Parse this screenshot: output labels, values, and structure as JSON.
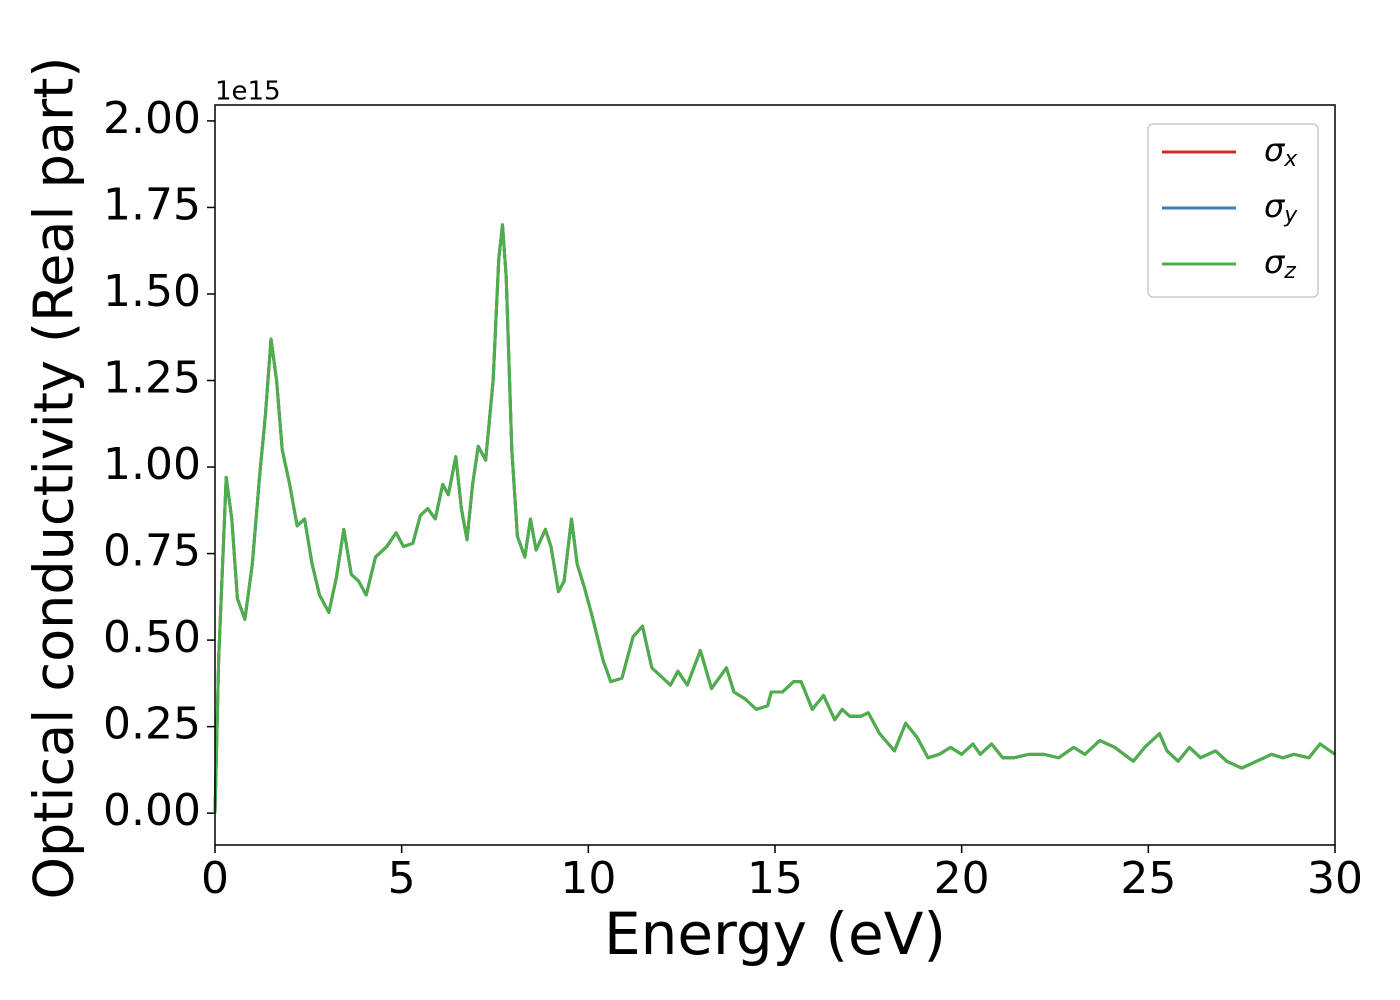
{
  "chart_data": {
    "type": "line",
    "x_label": "Energy (eV)",
    "y_label": "Optical conductivity (Real part)",
    "y_offset_label": "1e15",
    "xlim": [
      0,
      30
    ],
    "ylim": [
      -0.092,
      2.046
    ],
    "xticks": [
      0,
      5,
      10,
      15,
      20,
      25,
      30
    ],
    "yticks": [
      {
        "value": 0,
        "label": "0.00"
      },
      {
        "value": 0.25,
        "label": "0.25"
      },
      {
        "value": 0.5,
        "label": "0.50"
      },
      {
        "value": 0.75,
        "label": "0.75"
      },
      {
        "value": 1,
        "label": "1.00"
      },
      {
        "value": 1.25,
        "label": "1.25"
      },
      {
        "value": 1.5,
        "label": "1.50"
      },
      {
        "value": 1.75,
        "label": "1.75"
      },
      {
        "value": 2,
        "label": "2.00"
      }
    ],
    "legend": "upper right",
    "x": [
      0,
      0.1,
      0.3,
      0.45,
      0.6,
      0.8,
      1.0,
      1.2,
      1.35,
      1.5,
      1.65,
      1.8,
      2.0,
      2.2,
      2.4,
      2.6,
      2.8,
      3.05,
      3.25,
      3.45,
      3.65,
      3.85,
      4.05,
      4.3,
      4.6,
      4.85,
      5.05,
      5.3,
      5.5,
      5.7,
      5.9,
      6.1,
      6.25,
      6.45,
      6.6,
      6.75,
      6.9,
      7.05,
      7.25,
      7.45,
      7.6,
      7.7,
      7.8,
      7.95,
      8.1,
      8.3,
      8.45,
      8.6,
      8.85,
      9.0,
      9.2,
      9.35,
      9.55,
      9.7,
      9.9,
      10.1,
      10.4,
      10.6,
      10.9,
      11.2,
      11.45,
      11.7,
      12.0,
      12.2,
      12.4,
      12.65,
      13.0,
      13.3,
      13.7,
      13.9,
      14.2,
      14.5,
      14.8,
      14.9,
      15.2,
      15.5,
      15.7,
      16.0,
      16.3,
      16.6,
      16.8,
      17.0,
      17.3,
      17.5,
      17.8,
      18.2,
      18.5,
      18.8,
      19.1,
      19.4,
      19.7,
      20.0,
      20.3,
      20.5,
      20.8,
      21.1,
      21.4,
      21.8,
      22.2,
      22.6,
      23.0,
      23.3,
      23.7,
      24.1,
      24.6,
      24.9,
      25.3,
      25.5,
      25.8,
      26.1,
      26.4,
      26.8,
      27.1,
      27.5,
      27.9,
      28.3,
      28.6,
      28.9,
      29.3,
      29.6,
      30.0
    ],
    "series": [
      {
        "name": "σx",
        "color": "#d62728",
        "values": [
          0,
          0.45,
          0.97,
          0.85,
          0.62,
          0.56,
          0.72,
          0.98,
          1.15,
          1.37,
          1.25,
          1.05,
          0.95,
          0.83,
          0.85,
          0.72,
          0.63,
          0.58,
          0.68,
          0.82,
          0.69,
          0.67,
          0.63,
          0.74,
          0.77,
          0.81,
          0.77,
          0.78,
          0.86,
          0.88,
          0.85,
          0.95,
          0.92,
          1.03,
          0.88,
          0.79,
          0.95,
          1.06,
          1.02,
          1.25,
          1.6,
          1.7,
          1.55,
          1.05,
          0.8,
          0.74,
          0.85,
          0.76,
          0.82,
          0.77,
          0.64,
          0.67,
          0.85,
          0.72,
          0.65,
          0.57,
          0.44,
          0.38,
          0.39,
          0.51,
          0.54,
          0.42,
          0.39,
          0.37,
          0.41,
          0.37,
          0.47,
          0.36,
          0.42,
          0.35,
          0.33,
          0.3,
          0.31,
          0.35,
          0.35,
          0.38,
          0.38,
          0.3,
          0.34,
          0.27,
          0.3,
          0.28,
          0.28,
          0.29,
          0.23,
          0.18,
          0.26,
          0.22,
          0.16,
          0.17,
          0.19,
          0.17,
          0.2,
          0.17,
          0.2,
          0.16,
          0.16,
          0.17,
          0.17,
          0.16,
          0.19,
          0.17,
          0.21,
          0.19,
          0.15,
          0.19,
          0.23,
          0.18,
          0.15,
          0.19,
          0.16,
          0.18,
          0.15,
          0.13,
          0.15,
          0.17,
          0.16,
          0.17,
          0.16,
          0.2,
          0.17
        ]
      },
      {
        "name": "σy",
        "color": "#3a7fb8",
        "values": [
          0,
          0.45,
          0.97,
          0.85,
          0.62,
          0.56,
          0.72,
          0.98,
          1.15,
          1.37,
          1.25,
          1.05,
          0.95,
          0.83,
          0.85,
          0.72,
          0.63,
          0.58,
          0.68,
          0.82,
          0.69,
          0.67,
          0.63,
          0.74,
          0.77,
          0.81,
          0.77,
          0.78,
          0.86,
          0.88,
          0.85,
          0.95,
          0.92,
          1.03,
          0.88,
          0.79,
          0.95,
          1.06,
          1.02,
          1.25,
          1.6,
          1.7,
          1.55,
          1.05,
          0.8,
          0.74,
          0.85,
          0.76,
          0.82,
          0.77,
          0.64,
          0.67,
          0.85,
          0.72,
          0.65,
          0.57,
          0.44,
          0.38,
          0.39,
          0.51,
          0.54,
          0.42,
          0.39,
          0.37,
          0.41,
          0.37,
          0.47,
          0.36,
          0.42,
          0.35,
          0.33,
          0.3,
          0.31,
          0.35,
          0.35,
          0.38,
          0.38,
          0.3,
          0.34,
          0.27,
          0.3,
          0.28,
          0.28,
          0.29,
          0.23,
          0.18,
          0.26,
          0.22,
          0.16,
          0.17,
          0.19,
          0.17,
          0.2,
          0.17,
          0.2,
          0.16,
          0.16,
          0.17,
          0.17,
          0.16,
          0.19,
          0.17,
          0.21,
          0.19,
          0.15,
          0.19,
          0.23,
          0.18,
          0.15,
          0.19,
          0.16,
          0.18,
          0.15,
          0.13,
          0.15,
          0.17,
          0.16,
          0.17,
          0.16,
          0.2,
          0.17
        ]
      },
      {
        "name": "σz",
        "color": "#4daf4a",
        "values": [
          0,
          0.45,
          0.97,
          0.85,
          0.62,
          0.56,
          0.72,
          0.98,
          1.15,
          1.37,
          1.25,
          1.05,
          0.95,
          0.83,
          0.85,
          0.72,
          0.63,
          0.58,
          0.68,
          0.82,
          0.69,
          0.67,
          0.63,
          0.74,
          0.77,
          0.81,
          0.77,
          0.78,
          0.86,
          0.88,
          0.85,
          0.95,
          0.92,
          1.03,
          0.88,
          0.79,
          0.95,
          1.06,
          1.02,
          1.25,
          1.6,
          1.7,
          1.55,
          1.05,
          0.8,
          0.74,
          0.85,
          0.76,
          0.82,
          0.77,
          0.64,
          0.67,
          0.85,
          0.72,
          0.65,
          0.57,
          0.44,
          0.38,
          0.39,
          0.51,
          0.54,
          0.42,
          0.39,
          0.37,
          0.41,
          0.37,
          0.47,
          0.36,
          0.42,
          0.35,
          0.33,
          0.3,
          0.31,
          0.35,
          0.35,
          0.38,
          0.38,
          0.3,
          0.34,
          0.27,
          0.3,
          0.28,
          0.28,
          0.29,
          0.23,
          0.18,
          0.26,
          0.22,
          0.16,
          0.17,
          0.19,
          0.17,
          0.2,
          0.17,
          0.2,
          0.16,
          0.16,
          0.17,
          0.17,
          0.16,
          0.19,
          0.17,
          0.21,
          0.19,
          0.15,
          0.19,
          0.23,
          0.18,
          0.15,
          0.19,
          0.16,
          0.18,
          0.15,
          0.13,
          0.15,
          0.17,
          0.16,
          0.17,
          0.16,
          0.2,
          0.17
        ]
      }
    ]
  }
}
